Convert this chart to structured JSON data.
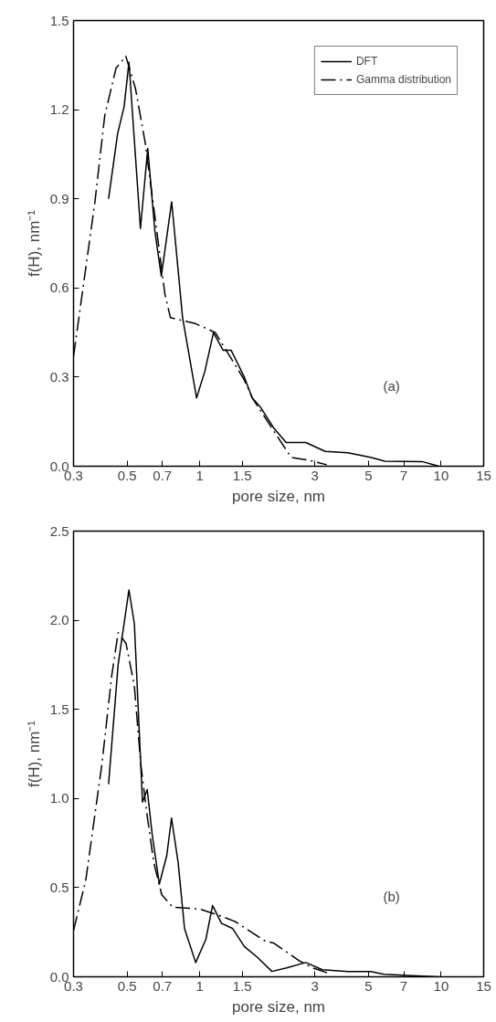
{
  "chart_data": [
    {
      "type": "line",
      "xlabel": "pore size, nm",
      "ylabel": "f(H), nm⁻¹",
      "log": "x",
      "grid": false,
      "legend": "top right",
      "annotations": [
        "(a)"
      ],
      "xlim": [
        0.3,
        15
      ],
      "xticks": [
        0.3,
        0.5,
        0.7,
        1,
        1.5,
        3,
        5,
        7,
        10,
        15
      ],
      "ylim": [
        0,
        1.5
      ],
      "yticks": [
        {
          "value": 0,
          "label": "0.0"
        },
        0.3,
        0.6,
        0.9,
        1.2,
        1.5
      ],
      "series": [
        {
          "name": "DFT",
          "color": "#000000",
          "line_style": "solid",
          "x": [
            0.419,
            0.457,
            0.486,
            0.509,
            0.568,
            0.609,
            0.652,
            0.693,
            0.765,
            0.849,
            0.97,
            1.05,
            1.14,
            1.25,
            1.35,
            1.53,
            1.65,
            1.78,
            2.02,
            2.28,
            2.75,
            3.31,
            4.11,
            5.1,
            5.85,
            8.4,
            9.8
          ],
          "values": [
            0.9,
            1.12,
            1.21,
            1.36,
            0.8,
            1.07,
            0.79,
            0.64,
            0.89,
            0.5,
            0.23,
            0.32,
            0.45,
            0.39,
            0.39,
            0.3,
            0.23,
            0.2,
            0.13,
            0.08,
            0.08,
            0.05,
            0.045,
            0.03,
            0.017,
            0.015,
            0.0
          ]
        },
        {
          "name": "Gamma distribution",
          "color": "#000000",
          "line_style": "dashed",
          "x": [
            0.3,
            0.368,
            0.404,
            0.45,
            0.494,
            0.542,
            0.594,
            0.652,
            0.717,
            0.756,
            0.96,
            1.16,
            1.53,
            1.65,
            2.02,
            2.39,
            2.84,
            3.36
          ],
          "values": [
            0.37,
            0.89,
            1.18,
            1.34,
            1.38,
            1.27,
            1.09,
            0.84,
            0.58,
            0.5,
            0.48,
            0.45,
            0.29,
            0.23,
            0.12,
            0.03,
            0.02,
            0.005
          ]
        }
      ]
    },
    {
      "type": "line",
      "xlabel": "pore size, nm",
      "ylabel": "f(H), nm⁻¹",
      "log": "x",
      "grid": false,
      "legend": false,
      "annotations": [
        "(b)"
      ],
      "xlim": [
        0.3,
        15
      ],
      "xticks": [
        0.3,
        0.5,
        0.7,
        1,
        1.5,
        3,
        5,
        7,
        10,
        15
      ],
      "ylim": [
        0,
        2.5
      ],
      "yticks": [
        {
          "value": 0,
          "label": "0.0"
        },
        0.5,
        {
          "value": 1,
          "label": "1.0"
        },
        1.5,
        {
          "value": 2,
          "label": "2.0"
        },
        2.5
      ],
      "series": [
        {
          "color": "#000000",
          "line_style": "solid",
          "x": [
            0.419,
            0.459,
            0.509,
            0.536,
            0.561,
            0.579,
            0.606,
            0.635,
            0.68,
            0.73,
            0.764,
            0.814,
            0.865,
            0.962,
            1.06,
            1.13,
            1.23,
            1.37,
            1.53,
            1.73,
            1.99,
            2.29,
            2.75,
            3.22,
            4.1,
            5.1,
            5.8,
            7.6,
            9.75
          ],
          "values": [
            1.08,
            1.75,
            2.17,
            1.98,
            1.39,
            0.98,
            1.05,
            0.8,
            0.52,
            0.68,
            0.89,
            0.64,
            0.27,
            0.08,
            0.21,
            0.4,
            0.3,
            0.27,
            0.17,
            0.11,
            0.03,
            0.05,
            0.08,
            0.04,
            0.03,
            0.03,
            0.014,
            0.006,
            0.0
          ]
        },
        {
          "color": "#000000",
          "line_style": "dashed",
          "x": [
            0.3,
            0.337,
            0.393,
            0.432,
            0.459,
            0.495,
            0.536,
            0.57,
            0.606,
            0.645,
            0.696,
            0.774,
            1.0,
            1.23,
            1.4,
            1.87,
            2.02,
            2.58,
            2.93,
            3.41
          ],
          "values": [
            0.26,
            0.54,
            1.19,
            1.69,
            1.93,
            1.87,
            1.63,
            1.19,
            0.9,
            0.64,
            0.46,
            0.39,
            0.38,
            0.34,
            0.31,
            0.2,
            0.19,
            0.09,
            0.05,
            0.02
          ]
        }
      ]
    }
  ]
}
